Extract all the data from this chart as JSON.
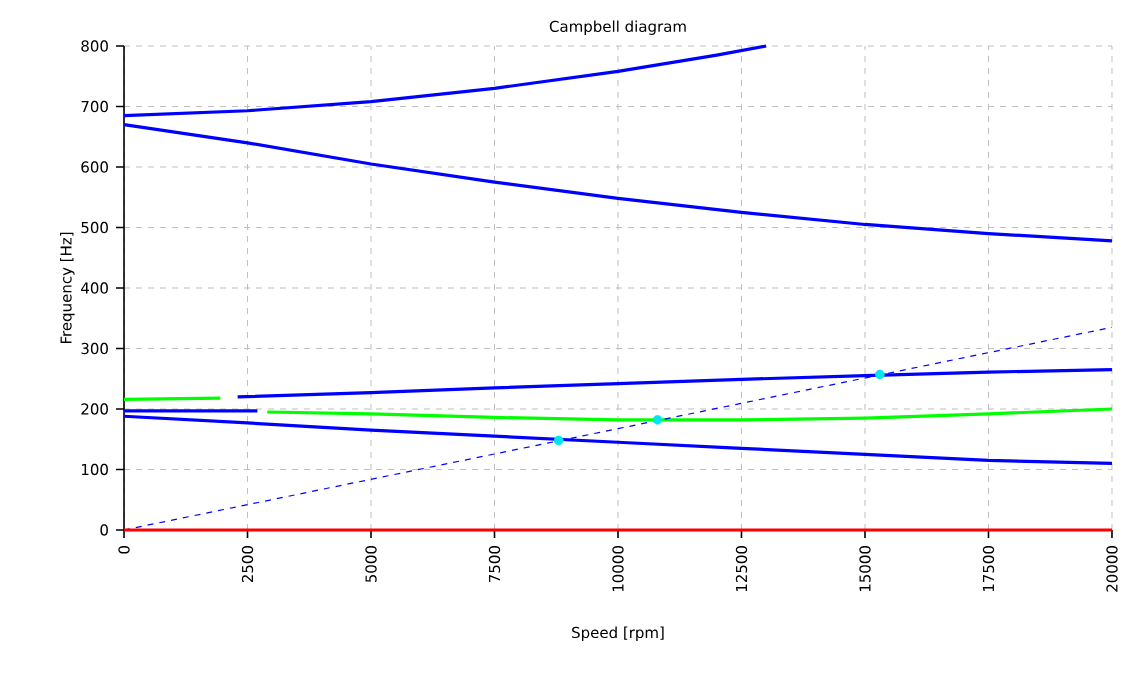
{
  "chart_data": {
    "type": "line",
    "title": "Campbell diagram",
    "xlabel": "Speed [rpm]",
    "ylabel": "Frequency [Hz]",
    "xlim": [
      0,
      20000
    ],
    "ylim": [
      0,
      800
    ],
    "xticks": [
      0,
      2500,
      5000,
      7500,
      10000,
      12500,
      15000,
      17500,
      20000
    ],
    "yticks": [
      0,
      100,
      200,
      300,
      400,
      500,
      600,
      700,
      800
    ],
    "grid": true,
    "series": [
      {
        "color": "#0000ff",
        "x": [
          0,
          2500,
          5000,
          7500,
          10000,
          12500,
          15000,
          17500,
          20000
        ],
        "values": [
          188,
          177,
          165,
          155,
          145,
          135,
          125,
          115,
          110
        ]
      },
      {
        "color": "#0000ff",
        "x": [
          0,
          2700
        ],
        "values": [
          197,
          197
        ]
      },
      {
        "color": "#00ff00",
        "x": [
          2900,
          5000,
          7500,
          10000,
          12500,
          15000,
          17500,
          20000
        ],
        "values": [
          195,
          192,
          186,
          182,
          182,
          185,
          192,
          200
        ]
      },
      {
        "color": "#00ff00",
        "x": [
          0,
          1950
        ],
        "values": [
          216,
          218
        ]
      },
      {
        "color": "#0000ff",
        "x": [
          2300,
          5000,
          7500,
          10000,
          12500,
          15000,
          17500,
          20000
        ],
        "values": [
          220,
          227,
          235,
          242,
          249,
          255,
          261,
          265
        ]
      },
      {
        "color": "#0000ff",
        "x": [
          0,
          2500,
          5000,
          7500,
          10000,
          12000,
          13000
        ],
        "values": [
          685,
          693,
          708,
          730,
          758,
          785,
          800
        ]
      },
      {
        "color": "#0000ff",
        "x": [
          0,
          2500,
          5000,
          7500,
          10000,
          12500,
          15000,
          17500,
          20000
        ],
        "values": [
          670,
          640,
          605,
          575,
          548,
          525,
          505,
          490,
          478
        ]
      },
      {
        "color": "#0000ff",
        "line_style": "dashed",
        "x": [
          0,
          20000
        ],
        "values": [
          0,
          335
        ]
      },
      {
        "color": "#ff0000",
        "x": [
          0,
          20000
        ],
        "values": [
          0,
          0
        ]
      },
      {
        "type": "scatter",
        "color": "#00e5ee",
        "x": [
          8800,
          10800,
          15300
        ],
        "values": [
          148,
          182,
          257
        ]
      }
    ]
  }
}
